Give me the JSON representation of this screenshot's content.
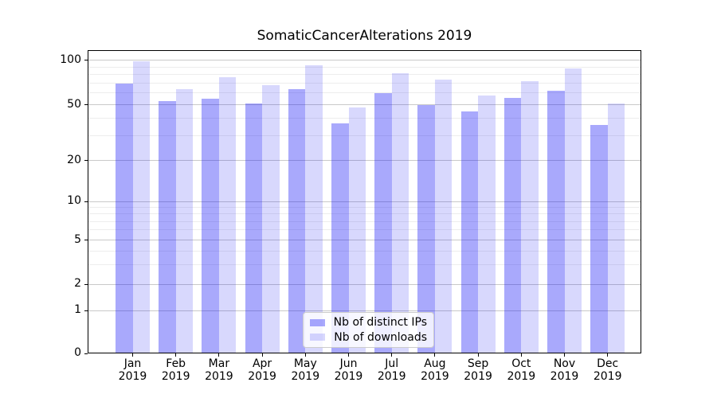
{
  "figure": {
    "title": "SomaticCancerAlterations 2019",
    "background_color": "#ffffff"
  },
  "chart_data": {
    "type": "bar",
    "title": "SomaticCancerAlterations 2019",
    "xlabel": "",
    "ylabel": "",
    "x": {
      "months": [
        "Jan",
        "Feb",
        "Mar",
        "Apr",
        "May",
        "Jun",
        "Jul",
        "Aug",
        "Sep",
        "Oct",
        "Nov",
        "Dec"
      ],
      "year": "2019"
    },
    "series": [
      {
        "name": "Nb of distinct IPs",
        "color": "rgba(10,10,245,0.35)",
        "approx_hex_on_white": "#a8a8f5",
        "values": [
          70,
          53,
          55,
          51,
          64,
          37,
          60,
          50,
          45,
          56,
          62,
          36
        ]
      },
      {
        "name": "Nb of downloads",
        "color": "rgba(10,10,245,0.16)",
        "approx_hex_on_white": "#d8d8fb",
        "values": [
          98,
          64,
          77,
          68,
          92,
          48,
          82,
          74,
          58,
          72,
          88,
          51
        ]
      }
    ],
    "y_axis": {
      "scale": "log-like",
      "range": [
        0,
        100
      ],
      "major_ticks": [
        0,
        1,
        2,
        5,
        10,
        20,
        50,
        100
      ],
      "minor_ticks": [
        3,
        4,
        6,
        7,
        8,
        9,
        30,
        40,
        60,
        70,
        80,
        90
      ]
    },
    "grid": {
      "major_color": "#c9c9c9",
      "minor_color": "#ededed",
      "on": true
    },
    "legend": {
      "position": "lower center",
      "border_color": "#cccccc",
      "background": "rgba(255,255,255,0.8)"
    }
  }
}
